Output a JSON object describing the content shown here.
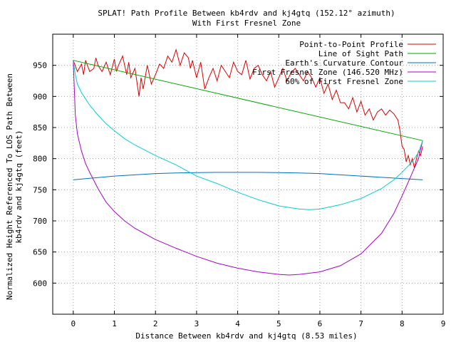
{
  "chart_data": {
    "type": "line",
    "title": "SPLAT! Path Profile Between kb4rdv and kj4gtq (152.12° azimuth)",
    "subtitle": "With First Fresnel Zone",
    "xlabel": "Distance Between kb4rdv and kj4gtq (8.53 miles)",
    "ylabel_lines": [
      "Normalized Height Referenced To LOS Path Between",
      "kb4rdv and kj4gtq (feet)"
    ],
    "xlim": [
      -0.5,
      9
    ],
    "ylim": [
      550,
      1000
    ],
    "xticks": [
      "0",
      "1",
      "2",
      "3",
      "4",
      "5",
      "6",
      "7",
      "8",
      "9"
    ],
    "yticks": [
      "600",
      "650",
      "700",
      "750",
      "800",
      "850",
      "900",
      "950"
    ],
    "grid": true,
    "legend_position": "top-right",
    "series": [
      {
        "name": "Point-to-Point Profile",
        "color": "#dd0000",
        "x": [
          0,
          0.1,
          0.2,
          0.25,
          0.3,
          0.4,
          0.5,
          0.55,
          0.6,
          0.7,
          0.8,
          0.9,
          1.0,
          1.05,
          1.1,
          1.2,
          1.3,
          1.35,
          1.4,
          1.5,
          1.6,
          1.65,
          1.7,
          1.8,
          1.9,
          2.0,
          2.1,
          2.2,
          2.3,
          2.4,
          2.5,
          2.6,
          2.7,
          2.8,
          2.85,
          2.9,
          3.0,
          3.1,
          3.2,
          3.3,
          3.4,
          3.5,
          3.6,
          3.7,
          3.8,
          3.9,
          4.0,
          4.1,
          4.2,
          4.3,
          4.4,
          4.5,
          4.6,
          4.7,
          4.8,
          4.9,
          5.0,
          5.1,
          5.2,
          5.3,
          5.4,
          5.5,
          5.6,
          5.7,
          5.8,
          5.9,
          6.0,
          6.1,
          6.2,
          6.3,
          6.4,
          6.5,
          6.6,
          6.7,
          6.8,
          6.9,
          7.0,
          7.1,
          7.2,
          7.3,
          7.4,
          7.5,
          7.6,
          7.7,
          7.8,
          7.9,
          7.95,
          8.0,
          8.05,
          8.1,
          8.15,
          8.2,
          8.25,
          8.3,
          8.35,
          8.4,
          8.45,
          8.5
        ],
        "y": [
          958,
          940,
          952,
          935,
          958,
          940,
          945,
          962,
          950,
          940,
          955,
          935,
          960,
          940,
          950,
          965,
          935,
          955,
          930,
          945,
          900,
          930,
          912,
          950,
          920,
          935,
          952,
          945,
          965,
          955,
          975,
          950,
          970,
          962,
          945,
          958,
          930,
          955,
          912,
          930,
          945,
          925,
          950,
          940,
          930,
          955,
          940,
          935,
          958,
          928,
          945,
          950,
          935,
          925,
          940,
          915,
          930,
          945,
          925,
          938,
          945,
          935,
          925,
          940,
          930,
          915,
          930,
          905,
          920,
          895,
          910,
          890,
          890,
          880,
          898,
          875,
          892,
          870,
          880,
          862,
          875,
          880,
          870,
          878,
          872,
          862,
          845,
          820,
          815,
          795,
          805,
          790,
          800,
          785,
          800,
          812,
          805,
          820
        ]
      },
      {
        "name": "Line of Sight Path",
        "color": "#00aa00",
        "x": [
          0,
          8.5
        ],
        "y": [
          958,
          829
        ]
      },
      {
        "name": "Earth's Curvature Contour",
        "color": "#0070c0",
        "x": [
          0,
          0.5,
          1,
          1.5,
          2,
          2.5,
          3,
          3.5,
          4,
          4.5,
          5,
          5.5,
          6,
          6.5,
          7,
          7.5,
          8,
          8.5
        ],
        "y": [
          766,
          769,
          772,
          774,
          776,
          777,
          777.5,
          778,
          778,
          778,
          777.5,
          777,
          776,
          774,
          772,
          770,
          768,
          766
        ]
      },
      {
        "name": "First Fresnel Zone (146.520 MHz)",
        "color": "#aa00cc",
        "x": [
          0,
          0.05,
          0.1,
          0.2,
          0.3,
          0.4,
          0.6,
          0.8,
          1,
          1.25,
          1.5,
          2,
          2.5,
          3,
          3.5,
          4,
          4.5,
          5,
          5.25,
          5.5,
          6,
          6.5,
          7,
          7.5,
          7.8,
          8,
          8.2,
          8.3,
          8.4,
          8.45,
          8.5
        ],
        "y": [
          958,
          870,
          840,
          812,
          792,
          778,
          752,
          730,
          715,
          700,
          688,
          670,
          656,
          643,
          632,
          624,
          618,
          614,
          613,
          614,
          618,
          628,
          647,
          680,
          712,
          740,
          770,
          785,
          800,
          815,
          829
        ]
      },
      {
        "name": "60% of First Fresnel Zone",
        "color": "#00d0d0",
        "x": [
          0,
          0.05,
          0.1,
          0.2,
          0.3,
          0.4,
          0.6,
          0.8,
          1,
          1.25,
          1.5,
          2,
          2.5,
          3,
          3.5,
          4,
          4.5,
          5,
          5.5,
          5.75,
          6,
          6.5,
          7,
          7.5,
          7.8,
          8,
          8.2,
          8.3,
          8.4,
          8.5
        ],
        "y": [
          958,
          935,
          920,
          906,
          896,
          886,
          870,
          856,
          845,
          832,
          822,
          805,
          790,
          772,
          760,
          746,
          734,
          724,
          719,
          718,
          719,
          726,
          736,
          752,
          766,
          778,
          792,
          800,
          810,
          829
        ]
      }
    ]
  }
}
